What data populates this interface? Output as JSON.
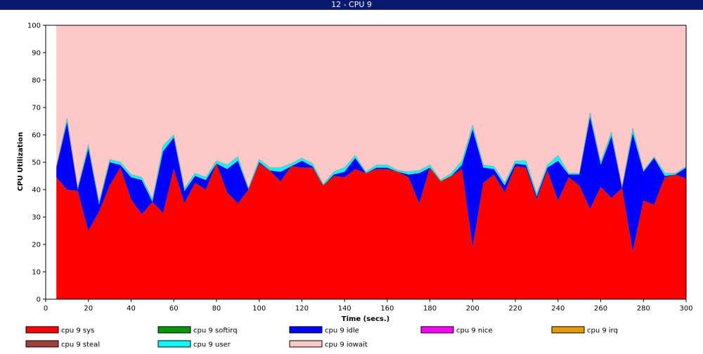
{
  "window": {
    "title": "12 - CPU 9"
  },
  "chart_data": {
    "type": "area",
    "stacked": true,
    "xlabel": "Time (secs.)",
    "ylabel": "CPU Utilization",
    "xlim": [
      0,
      300
    ],
    "ylim": [
      0,
      100
    ],
    "xticks": [
      0,
      20,
      40,
      60,
      80,
      100,
      120,
      140,
      160,
      180,
      200,
      220,
      240,
      260,
      280,
      300
    ],
    "yticks": [
      0,
      10,
      20,
      30,
      40,
      50,
      60,
      70,
      80,
      90,
      100
    ],
    "grid": false,
    "legend_position": "bottom",
    "x": [
      5,
      10,
      15,
      20,
      25,
      30,
      35,
      40,
      45,
      50,
      55,
      60,
      65,
      70,
      75,
      80,
      85,
      90,
      95,
      100,
      105,
      110,
      115,
      120,
      125,
      130,
      135,
      140,
      145,
      150,
      155,
      160,
      165,
      170,
      175,
      180,
      185,
      190,
      195,
      200,
      205,
      210,
      215,
      220,
      225,
      230,
      235,
      240,
      245,
      250,
      255,
      260,
      265,
      270,
      275,
      280,
      285,
      290,
      295,
      300
    ],
    "series": [
      {
        "name": "cpu 9 sys",
        "color": "#ff0000",
        "values": [
          44.5,
          40,
          39.5,
          25,
          32,
          41.5,
          48,
          36.5,
          31,
          35.5,
          31.5,
          47.5,
          35,
          42.5,
          40,
          49.5,
          39,
          35,
          40,
          49.5,
          47,
          43,
          48.5,
          48,
          48,
          41.5,
          45,
          44.5,
          47.5,
          46,
          47.5,
          47.5,
          46.5,
          44.5,
          35,
          48,
          43,
          45,
          47.5,
          19,
          42.5,
          45.5,
          39,
          48.5,
          48,
          36.5,
          47,
          36,
          44.5,
          41.5,
          33,
          41,
          37,
          40.5,
          17.5,
          36,
          34.5,
          44.5,
          45.5,
          44
        ]
      },
      {
        "name": "cpu 9 softirq",
        "color": "#009900",
        "values": [
          0,
          0,
          0,
          0,
          0,
          0,
          0,
          0,
          0,
          0,
          0,
          0,
          0,
          0,
          0,
          0,
          0,
          0,
          0,
          0,
          0,
          0,
          0,
          0,
          0,
          0,
          0,
          0,
          0,
          0,
          0,
          0,
          0,
          0,
          0,
          0,
          0,
          0,
          0,
          0,
          0,
          0,
          0,
          0,
          0,
          0,
          0,
          0,
          0,
          0,
          0,
          0,
          0,
          0,
          0,
          0,
          0,
          0,
          0,
          0
        ]
      },
      {
        "name": "cpu 9 idle",
        "color": "#0000ff",
        "values": [
          3.5,
          24.5,
          0.5,
          30,
          2.5,
          8.5,
          1,
          8,
          12.5,
          0,
          22.5,
          11.5,
          4.5,
          2.5,
          3.5,
          0,
          8.5,
          15.5,
          0,
          0.5,
          0,
          3.5,
          0,
          2.5,
          0.5,
          0,
          0.5,
          2,
          4,
          0,
          0.5,
          0.5,
          0,
          1,
          11,
          0,
          0,
          0,
          1.5,
          43,
          5.5,
          2,
          2.5,
          1,
          1,
          1,
          1,
          14.5,
          1,
          4,
          33.5,
          8,
          22.5,
          0,
          43,
          10.5,
          17,
          0.5,
          0,
          4
        ]
      },
      {
        "name": "cpu 9 nice",
        "color": "#ff00ff",
        "values": [
          0,
          0,
          0,
          0,
          0,
          0,
          0,
          0,
          0,
          0,
          0,
          0,
          0,
          0,
          0,
          0,
          0,
          0,
          0,
          0,
          0,
          0,
          0,
          0,
          0,
          0,
          0,
          0,
          0,
          0,
          0,
          0,
          0,
          0,
          0,
          0,
          0,
          0,
          0,
          0,
          0,
          0,
          0,
          0,
          0,
          0,
          0,
          0,
          0,
          0,
          0,
          0,
          0,
          0,
          0,
          0,
          0,
          0,
          0,
          0
        ]
      },
      {
        "name": "cpu 9 irq",
        "color": "#e39b00",
        "values": [
          0,
          0,
          0,
          0,
          0,
          0,
          0,
          0,
          0,
          0,
          0,
          0,
          0,
          0,
          0,
          0,
          0,
          0,
          0,
          0,
          0,
          0,
          0,
          0,
          0,
          0,
          0,
          0,
          0,
          0,
          0,
          0,
          0,
          0,
          0,
          0,
          0,
          0,
          0,
          0,
          0,
          0,
          0,
          0,
          0,
          0,
          0,
          0,
          0,
          0,
          0,
          0,
          0,
          0,
          0,
          0,
          0,
          0,
          0,
          0
        ]
      },
      {
        "name": "cpu 9 steal",
        "color": "#a0403c",
        "values": [
          0,
          0,
          0,
          0,
          0,
          0,
          0,
          0,
          0,
          0,
          0,
          0,
          0,
          0,
          0,
          0,
          0,
          0,
          0,
          0,
          0,
          0,
          0,
          0,
          0,
          0,
          0,
          0,
          0,
          0,
          0,
          0,
          0,
          0,
          0,
          0,
          0,
          0,
          0,
          0,
          0,
          0,
          0,
          0,
          0,
          0,
          0,
          0,
          0,
          0,
          0,
          0,
          0,
          0,
          0,
          0,
          0,
          0,
          0,
          0
        ]
      },
      {
        "name": "cpu 9 user",
        "color": "#00ffff",
        "values": [
          0.5,
          1.5,
          0.5,
          1.5,
          1,
          1,
          1,
          1,
          1,
          1,
          2,
          1,
          1,
          1,
          1,
          1,
          1.5,
          1.5,
          0.5,
          1,
          1,
          1.5,
          1,
          1,
          1,
          0.5,
          1,
          1.5,
          1,
          0.5,
          1,
          1,
          0.5,
          1,
          1,
          1,
          0.5,
          1,
          1.5,
          1.5,
          1,
          1,
          1,
          1,
          1.5,
          1,
          1,
          2,
          0.5,
          0.5,
          1.5,
          1,
          1.5,
          0.5,
          2,
          0.5,
          0.5,
          1,
          0.5,
          0.5
        ]
      },
      {
        "name": "cpu 9 iowait",
        "color": "#ffc8c8",
        "values": [
          51.5,
          34,
          59.5,
          43.5,
          64.5,
          49,
          50,
          54.5,
          55.5,
          63.5,
          44,
          40,
          59.5,
          54,
          55.5,
          49.5,
          51,
          48,
          59.5,
          49,
          52,
          52,
          50.5,
          48.5,
          50.5,
          58,
          53.5,
          52,
          47.5,
          53.5,
          51,
          51,
          53,
          53.5,
          53,
          51,
          56.5,
          54,
          49.5,
          36.5,
          51,
          51.5,
          57.5,
          49.5,
          49.5,
          61.5,
          51,
          47.5,
          54,
          54,
          32,
          50,
          39,
          59,
          37.5,
          53,
          48,
          54,
          54,
          51.5
        ]
      }
    ]
  }
}
